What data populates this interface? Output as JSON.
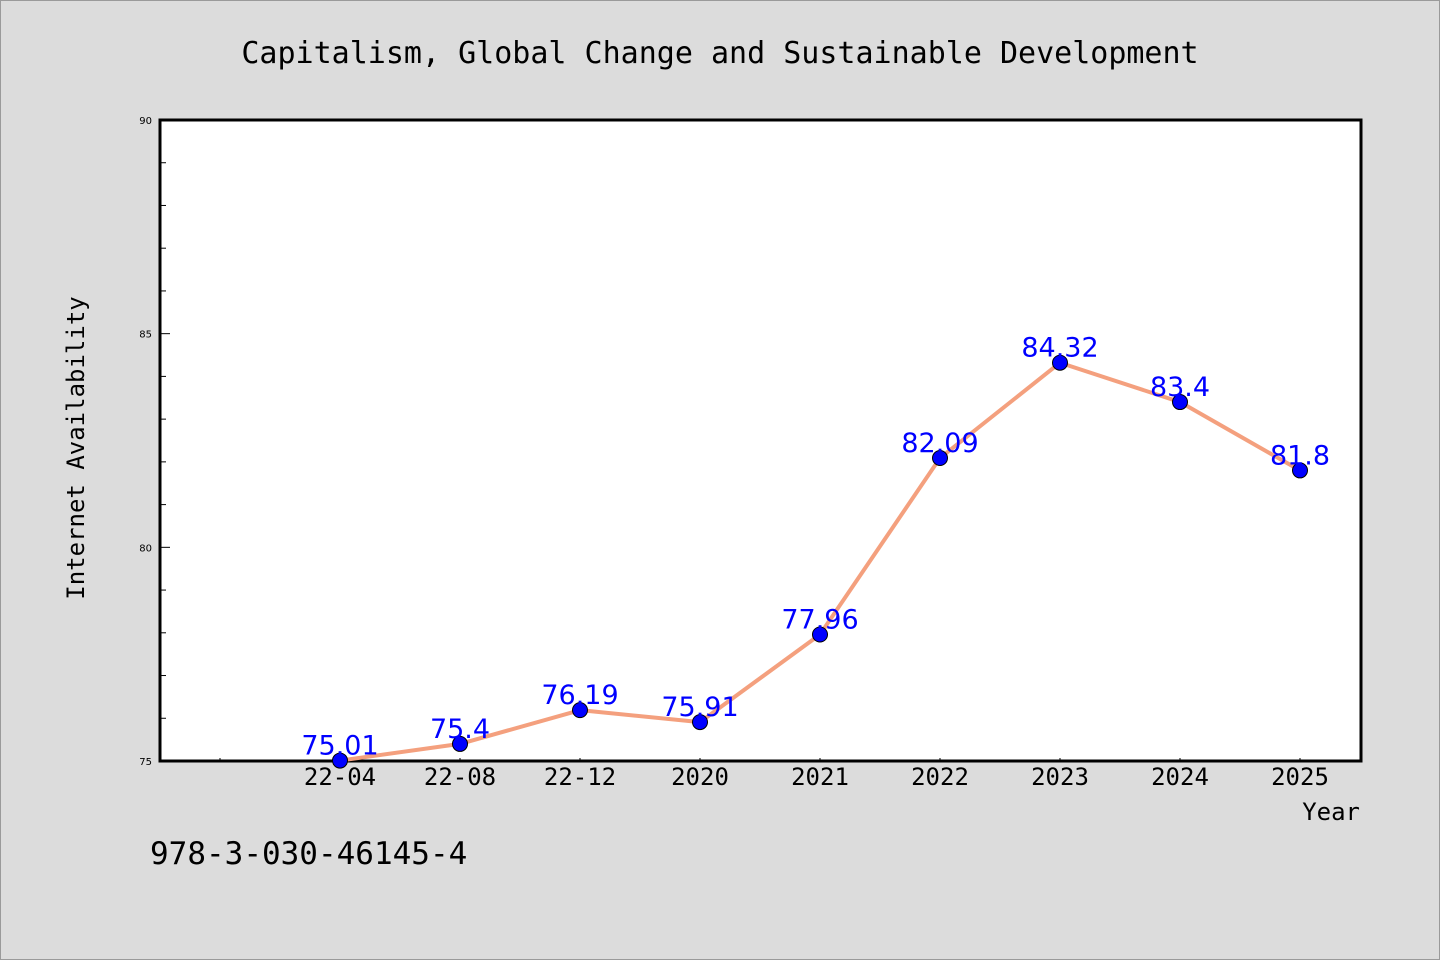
{
  "isbn": "978-3-030-46145-4",
  "colors": {
    "background": "#dcdcdc",
    "plot_background": "#ffffff",
    "line": "#f4a07e",
    "marker": "#0000ff",
    "data_label": "#0000ff"
  },
  "chart_data": {
    "type": "line",
    "title": "Capitalism, Global Change and Sustainable Development",
    "xlabel": "Year",
    "ylabel": "Internet Availability",
    "categories": [
      "22-04",
      "22-08",
      "22-12",
      "2020",
      "2021",
      "2022",
      "2023",
      "2024",
      "2025"
    ],
    "series": [
      {
        "values": [
          75.01,
          75.4,
          76.19,
          75.91,
          77.96,
          82.09,
          84.32,
          83.4,
          81.8
        ],
        "labels": [
          "75.01",
          "75.4",
          "76.19",
          "75.91",
          "77.96",
          "82.09",
          "84.32",
          "83.4",
          "81.8"
        ]
      }
    ],
    "ylim": [
      75,
      90
    ],
    "yticks": [
      75,
      80,
      85,
      90
    ],
    "ytick_labels": [
      "75",
      "80",
      "85",
      "90"
    ],
    "grid": false,
    "marker": "circle"
  }
}
